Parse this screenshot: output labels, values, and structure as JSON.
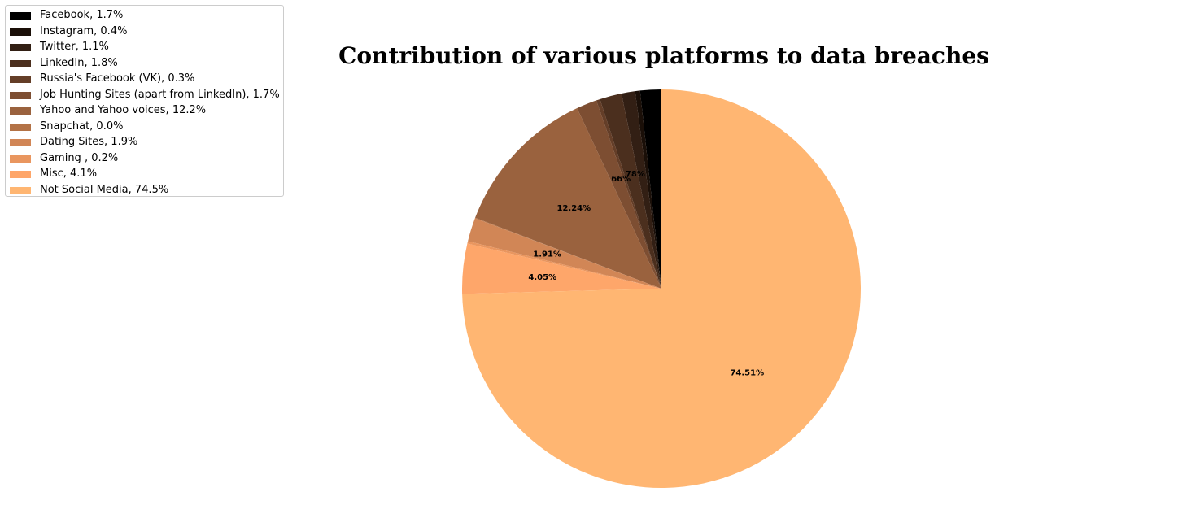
{
  "chart_data": {
    "type": "pie",
    "title": "Contribution of various platforms to data breaches",
    "legend_position": "top-left",
    "slices": [
      {
        "legend": "Facebook, 1.7%",
        "value": 1.71,
        "pct_label": "1.71%",
        "color": "#000000"
      },
      {
        "legend": "Instagram, 0.4%",
        "value": 0.4,
        "pct_label": "",
        "color": "#1a0f08"
      },
      {
        "legend": "Twitter, 1.1%",
        "value": 1.1,
        "pct_label": "",
        "color": "#321f14"
      },
      {
        "legend": "LinkedIn, 1.8%",
        "value": 1.78,
        "pct_label": "1.78%",
        "color": "#4b2f1e"
      },
      {
        "legend": "Russia's Facebook (VK), 0.3%",
        "value": 0.3,
        "pct_label": "",
        "color": "#643e28"
      },
      {
        "legend": "Job Hunting Sites (apart from LinkedIn), 1.7%",
        "value": 1.66,
        "pct_label": "1.66%",
        "color": "#7d4e32"
      },
      {
        "legend": "Yahoo and Yahoo voices, 12.2%",
        "value": 12.24,
        "pct_label": "12.24%",
        "color": "#9a623e"
      },
      {
        "legend": "Snapchat, 0.0%",
        "value": 0.04,
        "pct_label": "",
        "color": "#b37246"
      },
      {
        "legend": "Dating Sites, 1.9%",
        "value": 1.91,
        "pct_label": "1.91%",
        "color": "#d18656"
      },
      {
        "legend": "Gaming , 0.2%",
        "value": 0.2,
        "pct_label": "",
        "color": "#e9965f"
      },
      {
        "legend": "Misc, 4.1%",
        "value": 4.05,
        "pct_label": "4.05%",
        "color": "#fea66a"
      },
      {
        "legend": "Not Social Media, 74.5%",
        "value": 74.51,
        "pct_label": "74.51%",
        "color": "#ffb672"
      }
    ]
  }
}
